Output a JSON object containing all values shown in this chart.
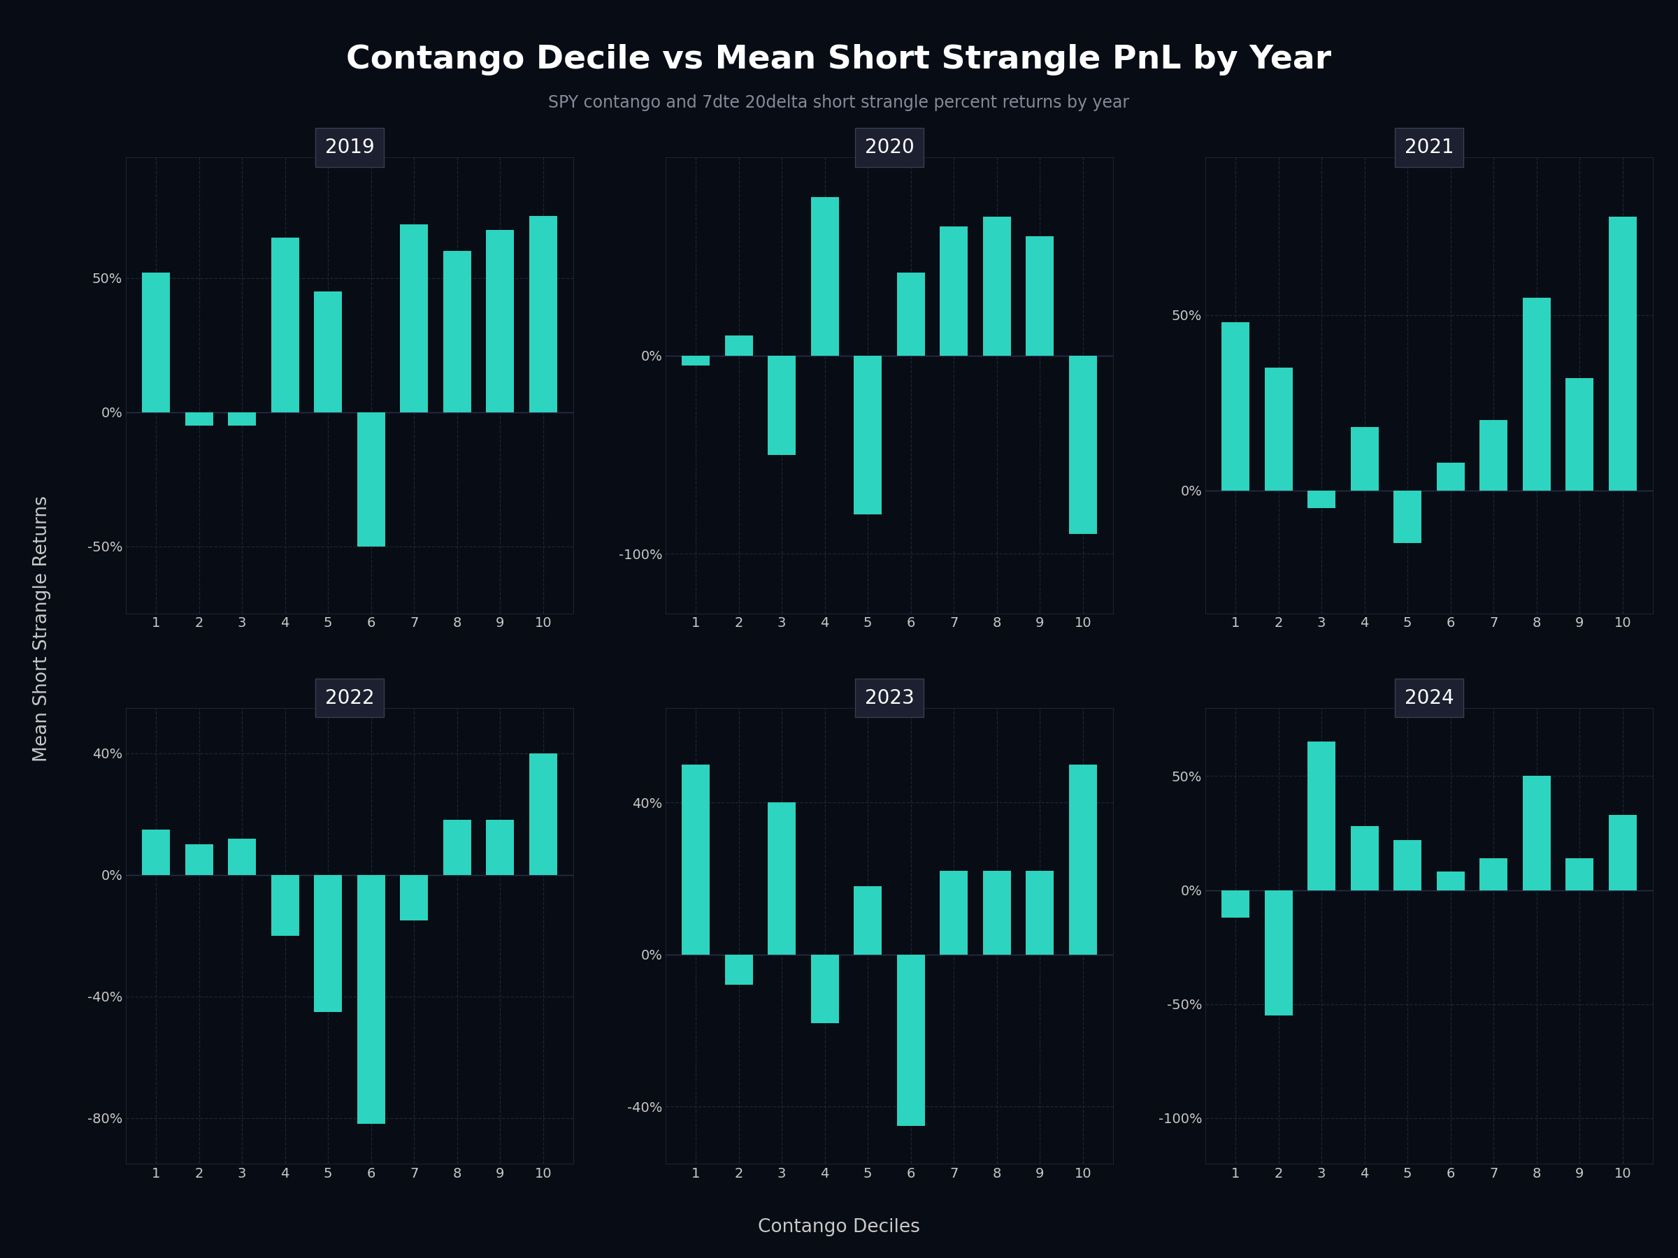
{
  "title": "Contango Decile vs Mean Short Strangle PnL by Year",
  "subtitle": "SPY contango and 7dte 20delta short strangle percent returns by year",
  "xlabel": "Contango Deciles",
  "ylabel": "Mean Short Strangle Returns",
  "bar_color": "#2dd4bf",
  "background_color": "#080c14",
  "panel_bg": "#080c14",
  "title_bg": "#1c2030",
  "grid_color": "#1e2535",
  "text_color": "#c8c8c8",
  "years": [
    2019,
    2020,
    2021,
    2022,
    2023,
    2024
  ],
  "data": {
    "2019": [
      52,
      -5,
      -5,
      65,
      45,
      -50,
      70,
      60,
      68,
      73
    ],
    "2020": [
      -5,
      10,
      -50,
      80,
      -80,
      42,
      65,
      70,
      60,
      -90
    ],
    "2021": [
      48,
      35,
      -5,
      18,
      -15,
      8,
      20,
      55,
      32,
      78
    ],
    "2022": [
      15,
      10,
      12,
      -20,
      -45,
      -82,
      -15,
      18,
      18,
      40
    ],
    "2023": [
      50,
      -8,
      40,
      -18,
      18,
      -45,
      22,
      22,
      22,
      50
    ],
    "2024": [
      -12,
      -55,
      65,
      28,
      22,
      8,
      14,
      50,
      14,
      33
    ]
  },
  "yticks": {
    "2019": [
      -50,
      0,
      50
    ],
    "2020": [
      -100,
      0
    ],
    "2021": [
      0,
      50
    ],
    "2022": [
      -80,
      -40,
      0,
      40
    ],
    "2023": [
      -40,
      0,
      40
    ],
    "2024": [
      -100,
      -50,
      0,
      50
    ]
  },
  "ylims": {
    "2019": [
      -75,
      95
    ],
    "2020": [
      -130,
      100
    ],
    "2021": [
      -35,
      95
    ],
    "2022": [
      -95,
      55
    ],
    "2023": [
      -55,
      65
    ],
    "2024": [
      -120,
      80
    ]
  }
}
